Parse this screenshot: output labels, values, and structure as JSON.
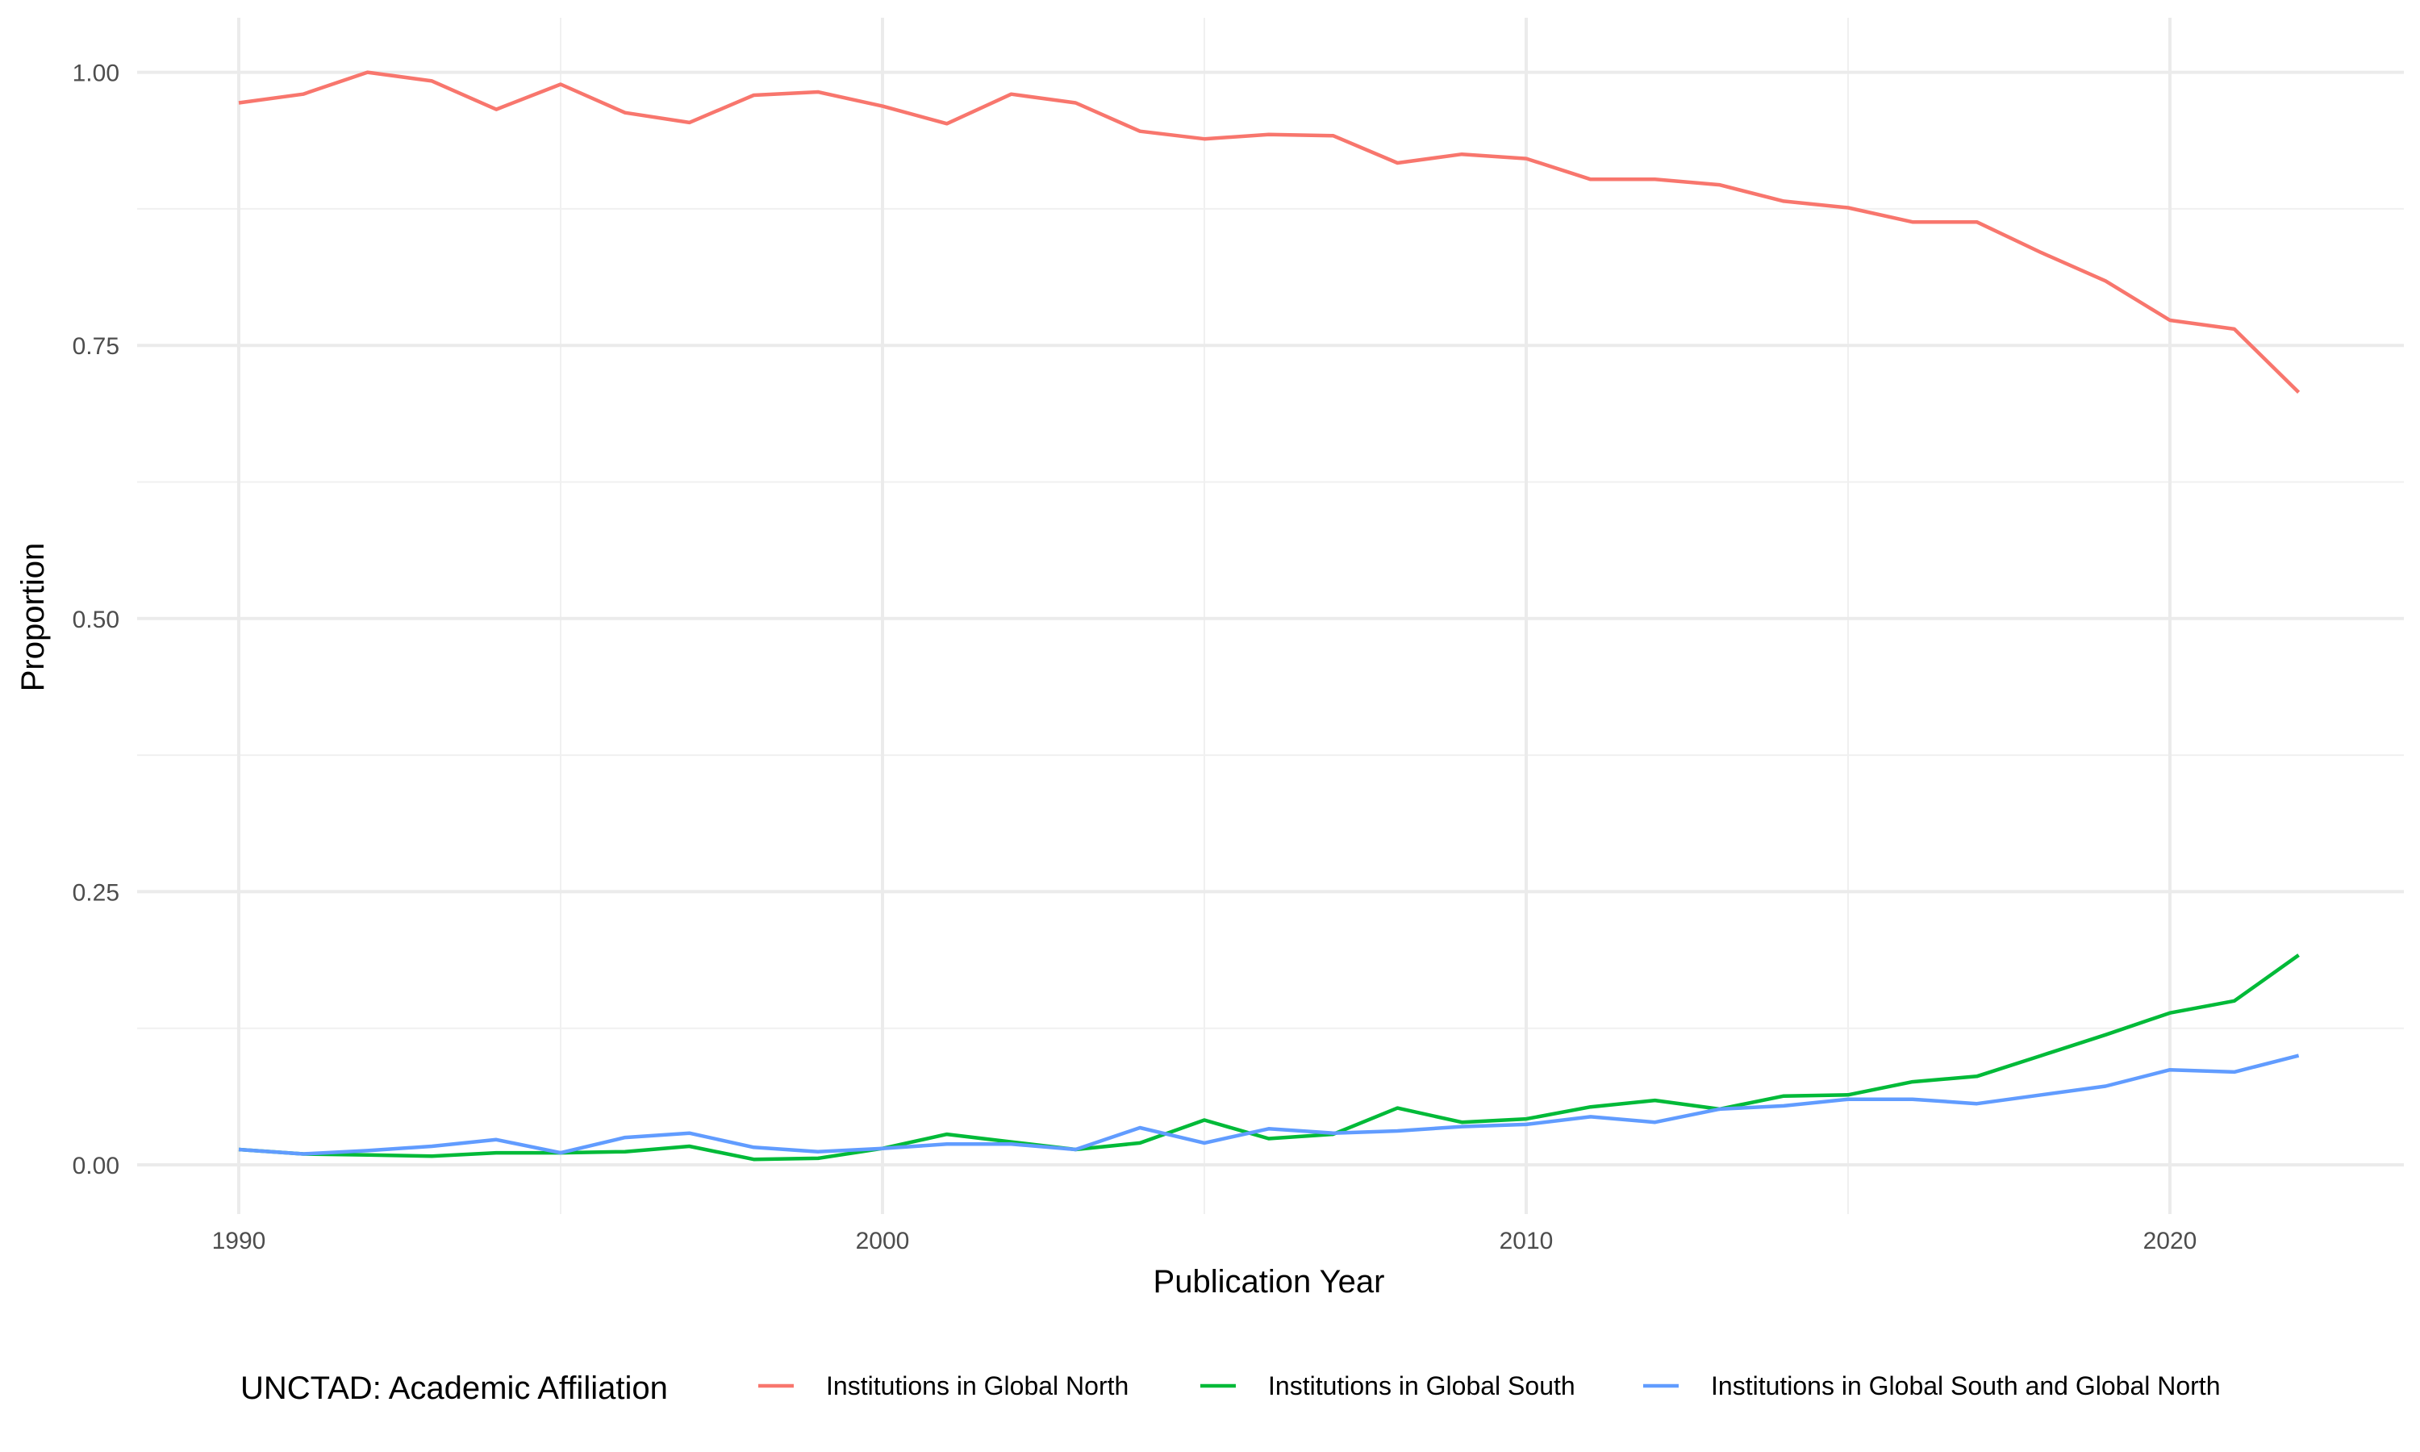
{
  "chart_data": {
    "type": "line",
    "title": "",
    "xlabel": "Publication Year",
    "ylabel": "Proportion",
    "xlim": [
      1988.9,
      2023.4
    ],
    "ylim": [
      -0.045,
      1.035
    ],
    "x_ticks": [
      1990,
      2000,
      2010,
      2020
    ],
    "x_tick_labels": [
      "1990",
      "2000",
      "2010",
      "2020"
    ],
    "y_ticks": [
      0.0,
      0.25,
      0.5,
      0.75,
      1.0
    ],
    "y_tick_labels": [
      "0.00",
      "0.25",
      "0.50",
      "0.75",
      "1.00"
    ],
    "grid": true,
    "legend_position": "bottom",
    "legend_title": "UNCTAD: Academic Affiliation",
    "x": [
      1990,
      1991,
      1992,
      1993,
      1994,
      1995,
      1996,
      1997,
      1998,
      1999,
      2000,
      2001,
      2002,
      2003,
      2004,
      2005,
      2006,
      2007,
      2008,
      2009,
      2010,
      2011,
      2012,
      2013,
      2014,
      2015,
      2016,
      2017,
      2018,
      2019,
      2020,
      2021,
      2022
    ],
    "series": [
      {
        "name": "Institutions in Global North",
        "color": "#F8766D",
        "values": [
          0.972,
          0.98,
          1.0,
          0.992,
          0.966,
          0.989,
          0.963,
          0.954,
          0.979,
          0.982,
          0.969,
          0.953,
          0.98,
          0.972,
          0.946,
          0.939,
          0.943,
          0.942,
          0.917,
          0.925,
          0.921,
          0.902,
          0.902,
          0.897,
          0.882,
          0.876,
          0.863,
          0.863,
          0.835,
          0.809,
          0.773,
          0.765,
          0.707
        ]
      },
      {
        "name": "Institutions in Global South",
        "color": "#00BA38",
        "values": [
          0.014,
          0.01,
          0.009,
          0.008,
          0.011,
          0.011,
          0.012,
          0.017,
          0.005,
          0.006,
          0.015,
          0.028,
          0.021,
          0.014,
          0.02,
          0.041,
          0.024,
          0.028,
          0.052,
          0.039,
          0.042,
          0.053,
          0.059,
          0.051,
          0.063,
          0.064,
          0.076,
          0.081,
          0.1,
          0.119,
          0.139,
          0.15,
          0.192
        ]
      },
      {
        "name": "Institutions in Global South and Global North",
        "color": "#619CFF",
        "values": [
          0.014,
          0.01,
          0.013,
          0.017,
          0.023,
          0.011,
          0.025,
          0.029,
          0.016,
          0.012,
          0.015,
          0.019,
          0.019,
          0.014,
          0.034,
          0.02,
          0.033,
          0.029,
          0.031,
          0.035,
          0.037,
          0.044,
          0.039,
          0.051,
          0.054,
          0.06,
          0.06,
          0.056,
          0.064,
          0.072,
          0.087,
          0.085,
          0.1
        ]
      }
    ]
  }
}
